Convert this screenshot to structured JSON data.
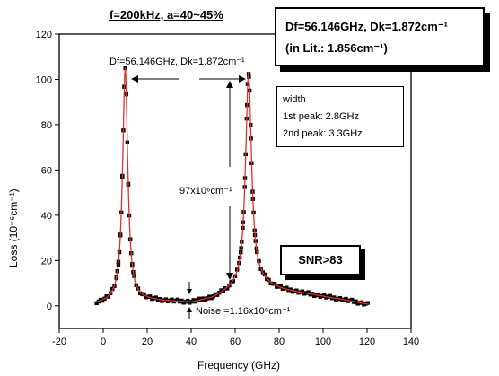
{
  "chart_data": {
    "type": "scatter",
    "title": "f=200kHz, a=40~45%",
    "xlabel": "Frequency (GHz)",
    "ylabel": "Loss (10⁻⁶cm⁻¹)",
    "xlim": [
      -20,
      140
    ],
    "ylim": [
      -10,
      120
    ],
    "xticks": [
      -20,
      0,
      20,
      40,
      60,
      80,
      100,
      120,
      140
    ],
    "yticks": [
      0,
      20,
      40,
      60,
      80,
      100,
      120
    ],
    "xticklabels": [
      "-20",
      "0",
      "20",
      "40",
      "60",
      "80",
      "100",
      "120",
      "140"
    ],
    "yticklabels": [
      "0",
      "20",
      "40",
      "60",
      "80",
      "100",
      "120"
    ],
    "grid": false,
    "colors": {
      "data": "#000000",
      "fit": "#e0302a"
    },
    "peaks": [
      {
        "x": 10.0,
        "y": 105.0,
        "width_ghz": 2.8
      },
      {
        "x": 66.1,
        "y": 103.0,
        "width_ghz": 3.3
      }
    ],
    "x_range_data": [
      -3,
      121
    ],
    "baseline": {
      "points_x": [
        -3,
        0,
        20,
        35,
        40,
        50,
        55,
        58,
        62,
        72,
        80,
        90,
        100,
        110,
        121
      ],
      "points_y": [
        0.5,
        0.8,
        2.0,
        1.5,
        1.2,
        3.0,
        5.0,
        6.0,
        7.0,
        9.0,
        7.0,
        5.5,
        4.0,
        2.5,
        0.5
      ]
    }
  },
  "texts": {
    "title": "f=200kHz, a=40~45%",
    "result_line1": "Df=56.146GHz, Dk=1.872cm⁻¹",
    "result_line2": "(in Lit.: 1.856cm⁻¹)",
    "width_label": "width",
    "width_peak1": "1st peak: 2.8GHz",
    "width_peak2": "2nd peak: 3.3GHz",
    "snr": "SNR>83",
    "df_annotation": "Df=56.146GHz, Dk=1.872cm⁻¹",
    "height_annotation": "97x10⁶cm⁻¹",
    "noise_annotation": "Noise =1.16x10⁶cm⁻¹"
  }
}
